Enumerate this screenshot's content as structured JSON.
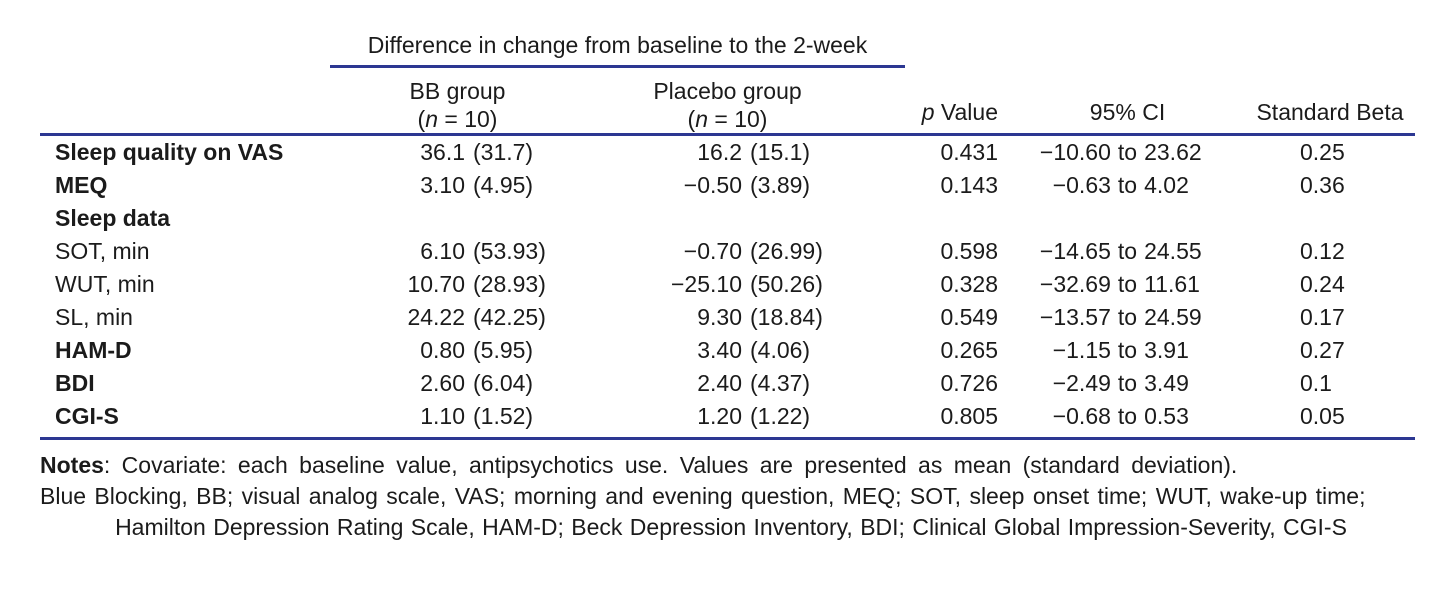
{
  "accent_color": "#2c3792",
  "table": {
    "spanner_title": "Difference in change from baseline to the 2-week",
    "col_bb": {
      "title": "BB group",
      "n_open": "(",
      "n_char": "n",
      "n_rest": " = 10)"
    },
    "col_placebo": {
      "title": "Placebo group",
      "n_open": "(",
      "n_char": "n",
      "n_rest": " = 10)"
    },
    "col_p": {
      "p_char": "p",
      "p_rest": " Value"
    },
    "col_ci": "95% CI",
    "col_beta": "Standard Beta",
    "ci_word": "to",
    "rows": [
      {
        "label": "Sleep quality on VAS",
        "bb_mean": "36.1",
        "bb_sd": "(31.7)",
        "pl_mean": "16.2",
        "pl_sd": "(15.1)",
        "p": "0.431",
        "ci_lo": "−10.60",
        "ci_hi": "23.62",
        "beta": "0.25"
      },
      {
        "label": "MEQ",
        "bb_mean": "3.10",
        "bb_sd": "(4.95)",
        "pl_mean": "−0.50",
        "pl_sd": "(3.89)",
        "p": "0.143",
        "ci_lo": "−0.63",
        "ci_hi": "4.02",
        "beta": "0.36"
      },
      {
        "label": "Sleep data"
      },
      {
        "label": "SOT, min",
        "bb_mean": "6.10",
        "bb_sd": "(53.93)",
        "pl_mean": "−0.70",
        "pl_sd": "(26.99)",
        "p": "0.598",
        "ci_lo": "−14.65",
        "ci_hi": "24.55",
        "beta": "0.12"
      },
      {
        "label": "WUT, min",
        "bb_mean": "10.70",
        "bb_sd": "(28.93)",
        "pl_mean": "−25.10",
        "pl_sd": "(50.26)",
        "p": "0.328",
        "ci_lo": "−32.69",
        "ci_hi": "11.61",
        "beta": "0.24"
      },
      {
        "label": "SL, min",
        "bb_mean": "24.22",
        "bb_sd": "(42.25)",
        "pl_mean": "9.30",
        "pl_sd": "(18.84)",
        "p": "0.549",
        "ci_lo": "−13.57",
        "ci_hi": "24.59",
        "beta": "0.17"
      },
      {
        "label": "HAM-D",
        "bb_mean": "0.80",
        "bb_sd": "(5.95)",
        "pl_mean": "3.40",
        "pl_sd": "(4.06)",
        "p": "0.265",
        "ci_lo": "−1.15",
        "ci_hi": "3.91",
        "beta": "0.27"
      },
      {
        "label": "BDI",
        "bb_mean": "2.60",
        "bb_sd": "(6.04)",
        "pl_mean": "2.40",
        "pl_sd": "(4.37)",
        "p": "0.726",
        "ci_lo": "−2.49",
        "ci_hi": "3.49",
        "beta": "0.1"
      },
      {
        "label": "CGI-S",
        "bb_mean": "1.10",
        "bb_sd": "(1.52)",
        "pl_mean": "1.20",
        "pl_sd": "(1.22)",
        "p": "0.805",
        "ci_lo": "−0.68",
        "ci_hi": "0.53",
        "beta": "0.05"
      }
    ]
  },
  "notes": {
    "label": "Notes",
    "line1_rest": ": Covariate: each baseline value, antipsychotics use. Values are presented as mean (standard deviation).",
    "line2": "Blue Blocking, BB; visual analog scale, VAS; morning and evening question, MEQ; SOT, sleep onset time; WUT, wake-up time;",
    "line3": "Hamilton Depression Rating Scale, HAM-D; Beck Depression Inventory, BDI; Clinical Global Impression-Severity, CGI-S"
  }
}
